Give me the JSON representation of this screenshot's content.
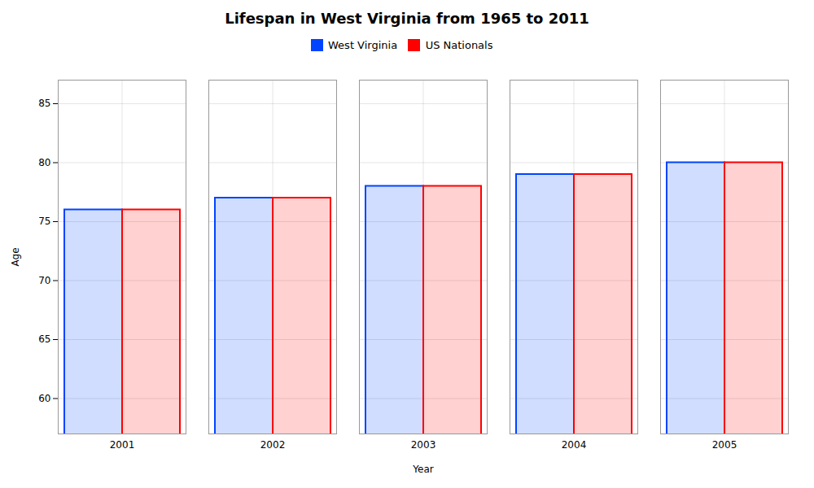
{
  "chart_data": {
    "type": "bar",
    "title": "Lifespan in West Virginia from 1965 to 2011",
    "xlabel": "Year",
    "ylabel": "Age",
    "categories": [
      "2001",
      "2002",
      "2003",
      "2004",
      "2005"
    ],
    "series": [
      {
        "name": "West Virginia",
        "color": "#0044ff",
        "values": [
          76,
          77,
          78,
          79,
          80
        ]
      },
      {
        "name": "US Nationals",
        "color": "#ff0000",
        "values": [
          76,
          77,
          78,
          79,
          80
        ]
      }
    ],
    "ylim": [
      57,
      87
    ],
    "yticks": [
      60,
      65,
      70,
      75,
      80,
      85
    ],
    "grid": true,
    "legend": "top"
  }
}
